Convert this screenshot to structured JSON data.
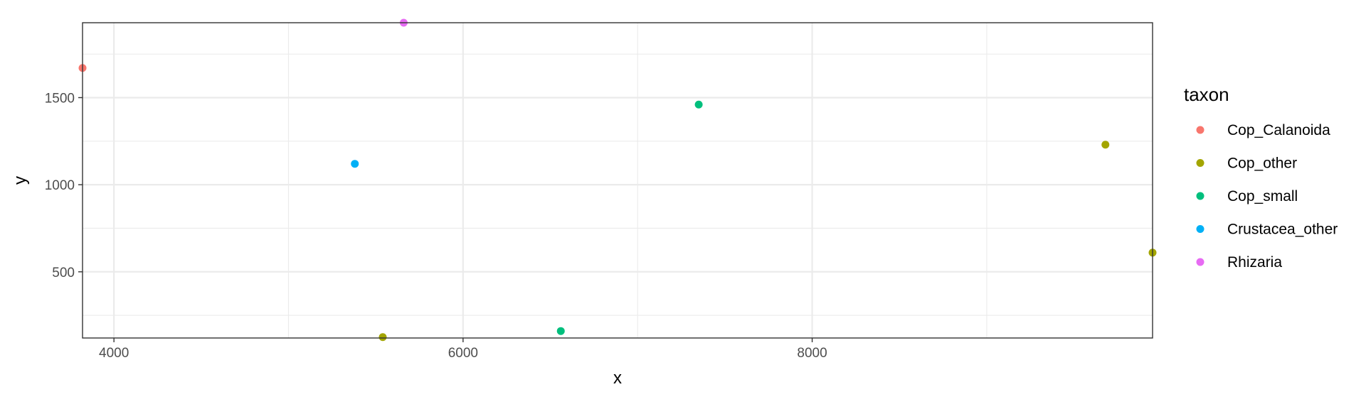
{
  "chart_data": {
    "type": "scatter",
    "xlabel": "x",
    "ylabel": "y",
    "xlim": [
      3820,
      9950
    ],
    "ylim": [
      120,
      1930
    ],
    "x_ticks": [
      4000,
      6000,
      8000
    ],
    "y_ticks": [
      500,
      1000,
      1500
    ],
    "grid": true,
    "legend": {
      "title": "taxon",
      "placement": "right"
    },
    "series": [
      {
        "name": "Cop_Calanoida",
        "color": "#F8766D",
        "points": [
          {
            "x": 3820,
            "y": 1670
          }
        ]
      },
      {
        "name": "Cop_other",
        "color": "#A3A500",
        "points": [
          {
            "x": 5540,
            "y": 125
          },
          {
            "x": 9680,
            "y": 1230
          },
          {
            "x": 9950,
            "y": 610
          }
        ]
      },
      {
        "name": "Cop_small",
        "color": "#00BF7D",
        "points": [
          {
            "x": 6560,
            "y": 160
          },
          {
            "x": 7350,
            "y": 1460
          }
        ]
      },
      {
        "name": "Crustacea_other",
        "color": "#00B0F6",
        "points": [
          {
            "x": 5380,
            "y": 1120
          }
        ]
      },
      {
        "name": "Rhizaria",
        "color": "#E76BF3",
        "points": [
          {
            "x": 5660,
            "y": 1930
          }
        ]
      }
    ]
  }
}
